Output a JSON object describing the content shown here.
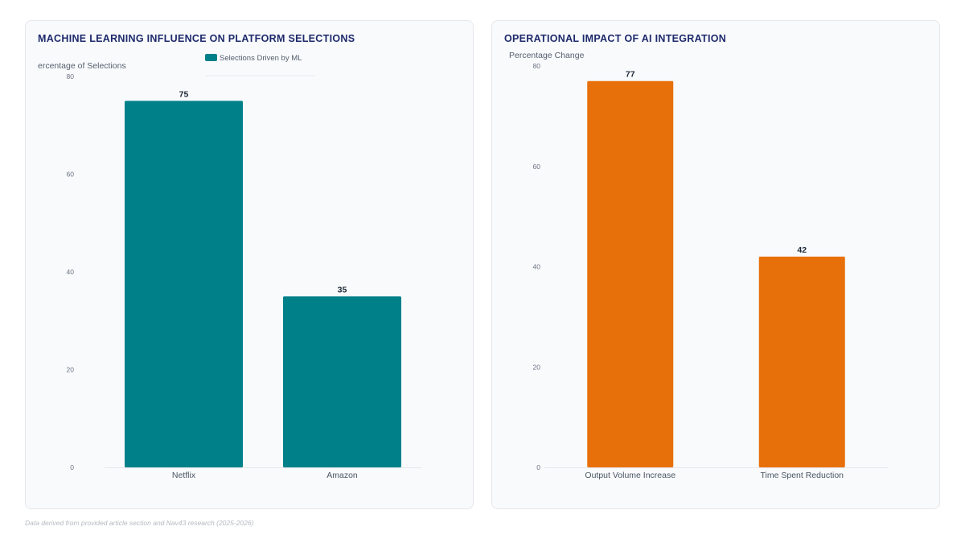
{
  "chart_data": [
    {
      "type": "bar",
      "title": "MACHINE LEARNING INFLUENCE ON PLATFORM SELECTIONS",
      "ylabel": "ercentage of Selections",
      "categories": [
        "Netflix",
        "Amazon"
      ],
      "series": [
        {
          "name": "Selections Driven by ML",
          "values": [
            75,
            35
          ],
          "color": "#00818a"
        }
      ],
      "yticks": [
        0,
        20,
        40,
        60,
        80
      ],
      "ylim": [
        0,
        80
      ],
      "legend": "top-center",
      "grid": false,
      "data_labels": true
    },
    {
      "type": "bar",
      "title": "OPERATIONAL IMPACT OF AI INTEGRATION",
      "ylabel": "Percentage Change",
      "categories": [
        "Output Volume Increase",
        "Time Spent Reduction"
      ],
      "series": [
        {
          "values": [
            77,
            42
          ],
          "color": "#e8700a"
        }
      ],
      "yticks": [
        0,
        20,
        40,
        60,
        80
      ],
      "ylim": [
        0,
        80
      ],
      "legend": "none",
      "grid": false,
      "data_labels": true
    }
  ],
  "footer": "Data derived from provided article section and Nav43 research (2025-2026)"
}
